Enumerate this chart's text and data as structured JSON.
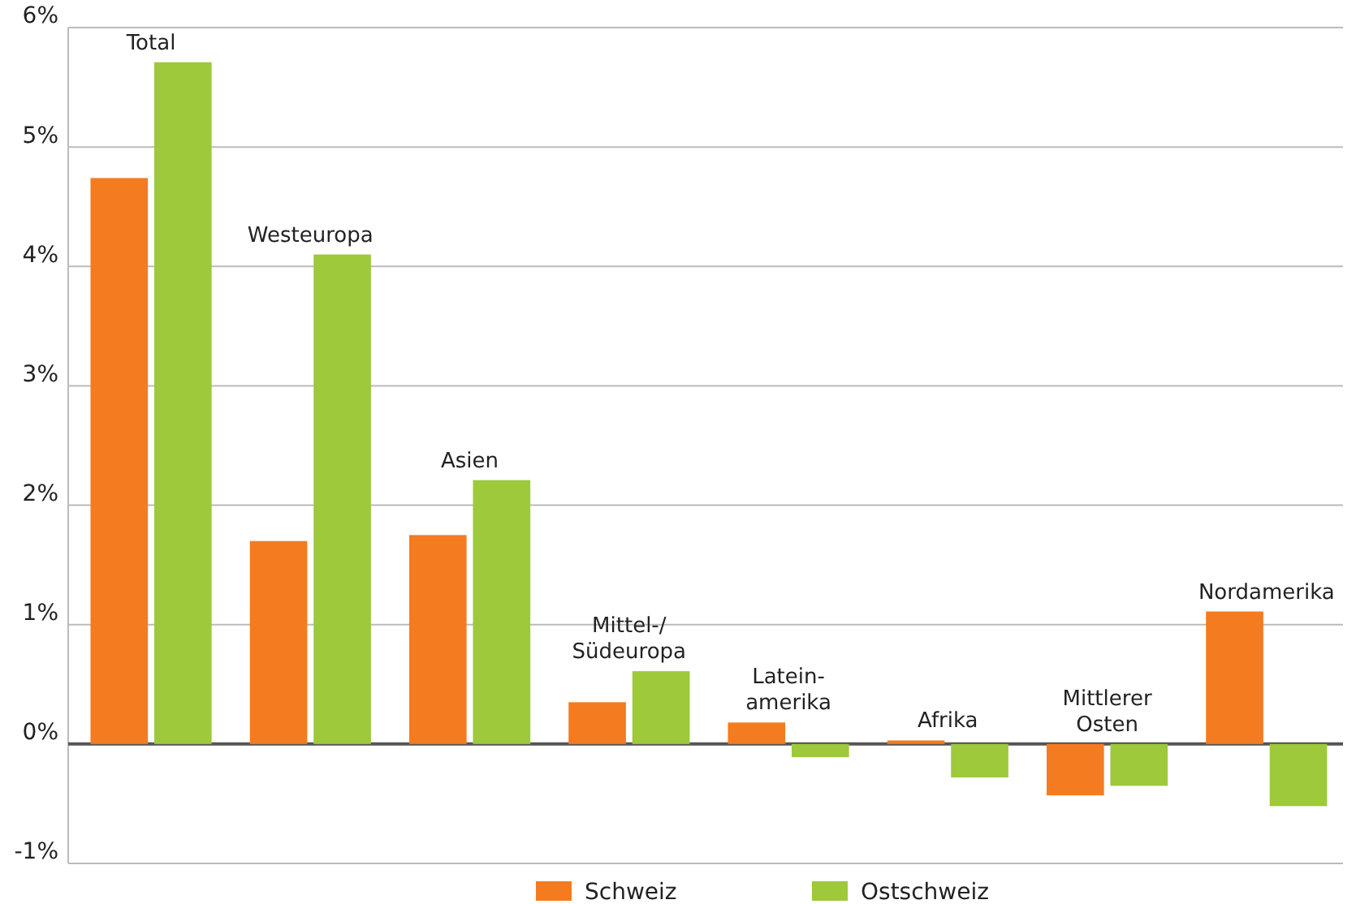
{
  "chart_data": {
    "type": "bar",
    "categories": [
      "Total",
      "Westeuropa",
      "Asien",
      "Mittel-/\nSüdeuropa",
      "Latein-\namerika",
      "Afrika",
      "Mittlerer\nOsten",
      "Nordamerika"
    ],
    "series": [
      {
        "name": "Schweiz",
        "color": "#f47b20",
        "values": [
          4.74,
          1.7,
          1.75,
          0.35,
          0.18,
          0.03,
          -0.43,
          1.11
        ]
      },
      {
        "name": "Ostschweiz",
        "color": "#9dc93b",
        "values": [
          5.71,
          4.1,
          2.21,
          0.61,
          -0.11,
          -0.28,
          -0.35,
          -0.52
        ]
      }
    ],
    "ylim": [
      -1,
      6
    ],
    "yticks": [
      {
        "value": -1,
        "label": "-1%"
      },
      {
        "value": 0,
        "label": "0%"
      },
      {
        "value": 1,
        "label": "1%"
      },
      {
        "value": 2,
        "label": "2%"
      },
      {
        "value": 3,
        "label": "3%"
      },
      {
        "value": 4,
        "label": "4%"
      },
      {
        "value": 5,
        "label": "5%"
      },
      {
        "value": 6,
        "label": "6%"
      }
    ],
    "grid": "y",
    "legend": "bottom"
  }
}
